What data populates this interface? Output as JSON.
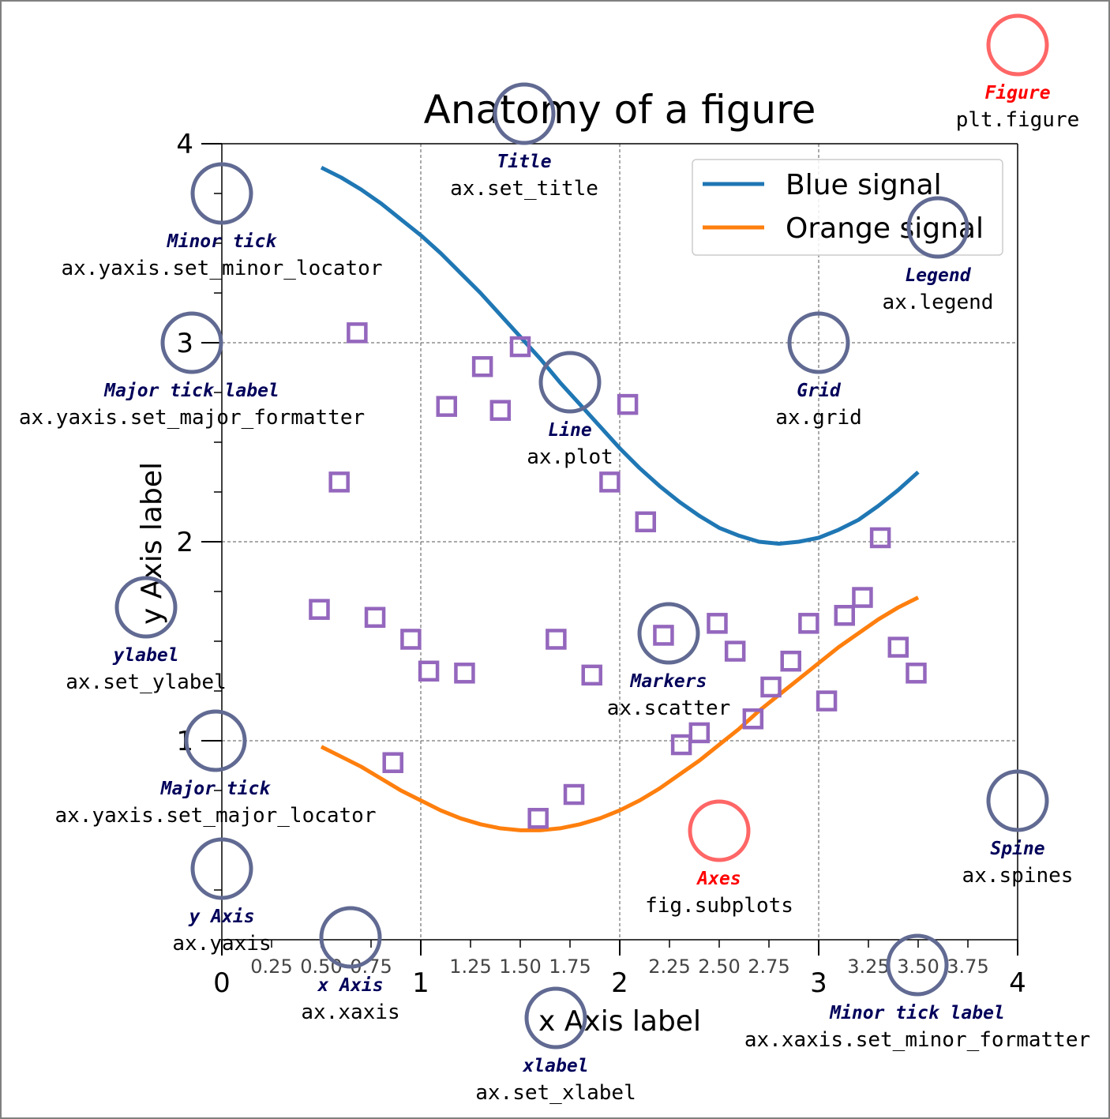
{
  "chart_data": {
    "type": "line",
    "title": "Anatomy of a figure",
    "xlabel": "x Axis label",
    "ylabel": "y Axis label",
    "xlim": [
      0,
      4
    ],
    "ylim": [
      0,
      4
    ],
    "grid": true,
    "legend_position": "upper right",
    "major_ticks_x": [
      "0",
      "1",
      "2",
      "3",
      "4"
    ],
    "major_ticks_y": [
      "1",
      "2",
      "3",
      "4"
    ],
    "minor_ticks_x": [
      "0.25",
      "0.50",
      "0.75",
      "1.25",
      "1.50",
      "1.75",
      "2.25",
      "2.50",
      "2.75",
      "3.25",
      "3.50",
      "3.75"
    ],
    "series": [
      {
        "name": "Blue signal",
        "type": "line",
        "color": "#1f77b4",
        "x": [
          0.5,
          0.6,
          0.7,
          0.8,
          0.9,
          1.0,
          1.1,
          1.2,
          1.3,
          1.4,
          1.5,
          1.6,
          1.7,
          1.8,
          1.9,
          2.0,
          2.1,
          2.2,
          2.3,
          2.4,
          2.5,
          2.6,
          2.7,
          2.8,
          2.9,
          3.0,
          3.1,
          3.2,
          3.3,
          3.4,
          3.5
        ],
        "y": [
          3.88,
          3.83,
          3.77,
          3.7,
          3.62,
          3.54,
          3.45,
          3.35,
          3.25,
          3.14,
          3.03,
          2.92,
          2.8,
          2.69,
          2.58,
          2.47,
          2.37,
          2.28,
          2.2,
          2.13,
          2.07,
          2.03,
          2.0,
          1.99,
          2.0,
          2.02,
          2.06,
          2.11,
          2.18,
          2.26,
          2.35
        ]
      },
      {
        "name": "Orange signal",
        "type": "line",
        "color": "#ff7f0e",
        "x": [
          0.5,
          0.6,
          0.7,
          0.8,
          0.9,
          1.0,
          1.1,
          1.2,
          1.3,
          1.4,
          1.5,
          1.6,
          1.7,
          1.8,
          1.9,
          2.0,
          2.1,
          2.2,
          2.3,
          2.4,
          2.5,
          2.6,
          2.7,
          2.8,
          2.9,
          3.0,
          3.1,
          3.2,
          3.3,
          3.4,
          3.5
        ],
        "y": [
          0.97,
          0.92,
          0.87,
          0.81,
          0.75,
          0.7,
          0.65,
          0.61,
          0.58,
          0.56,
          0.55,
          0.55,
          0.56,
          0.58,
          0.61,
          0.65,
          0.7,
          0.76,
          0.83,
          0.9,
          0.98,
          1.06,
          1.15,
          1.23,
          1.31,
          1.39,
          1.47,
          1.54,
          1.61,
          1.67,
          1.72
        ]
      },
      {
        "name": "Markers",
        "type": "scatter",
        "color": "#9467bd",
        "x": [
          0.49,
          0.59,
          0.68,
          0.77,
          0.86,
          0.95,
          1.04,
          1.13,
          1.22,
          1.31,
          1.4,
          1.5,
          1.59,
          1.68,
          1.77,
          1.86,
          1.95,
          2.04,
          2.13,
          2.22,
          2.31,
          2.4,
          2.49,
          2.58,
          2.67,
          2.76,
          2.86,
          2.95,
          3.04,
          3.13,
          3.22,
          3.31,
          3.4,
          3.49
        ],
        "y": [
          1.66,
          2.3,
          3.05,
          1.62,
          0.89,
          1.51,
          1.35,
          2.68,
          1.34,
          2.88,
          2.66,
          2.98,
          0.61,
          1.51,
          0.73,
          1.33,
          2.3,
          2.69,
          2.1,
          1.53,
          0.98,
          1.04,
          1.59,
          1.45,
          1.11,
          1.27,
          1.4,
          1.59,
          1.2,
          1.63,
          1.72,
          2.02,
          1.47,
          1.34
        ]
      }
    ],
    "annotations": [
      {
        "id": "figure",
        "title": "Figure",
        "code": "plt.figure",
        "title_color": "#ff0000"
      },
      {
        "id": "title",
        "title": "Title",
        "code": "ax.set_title",
        "title_color": "#00005a"
      },
      {
        "id": "minor-tick",
        "title": "Minor tick",
        "code": "ax.yaxis.set_minor_locator",
        "title_color": "#00005a"
      },
      {
        "id": "legend",
        "title": "Legend",
        "code": "ax.legend",
        "title_color": "#00005a"
      },
      {
        "id": "major-tick-label",
        "title": "Major tick label",
        "code": "ax.yaxis.set_major_formatter",
        "title_color": "#00005a"
      },
      {
        "id": "grid",
        "title": "Grid",
        "code": "ax.grid",
        "title_color": "#00005a"
      },
      {
        "id": "line",
        "title": "Line",
        "code": "ax.plot",
        "title_color": "#00005a"
      },
      {
        "id": "ylabel",
        "title": "ylabel",
        "code": "ax.set_ylabel",
        "title_color": "#00005a"
      },
      {
        "id": "markers",
        "title": "Markers",
        "code": "ax.scatter",
        "title_color": "#00005a"
      },
      {
        "id": "major-tick",
        "title": "Major tick",
        "code": "ax.yaxis.set_major_locator",
        "title_color": "#00005a"
      },
      {
        "id": "spine",
        "title": "Spine",
        "code": "ax.spines",
        "title_color": "#00005a"
      },
      {
        "id": "axes",
        "title": "Axes",
        "code": "fig.subplots",
        "title_color": "#ff0000"
      },
      {
        "id": "y-axis",
        "title": "y Axis",
        "code": "ax.yaxis",
        "title_color": "#00005a"
      },
      {
        "id": "x-axis",
        "title": "x Axis",
        "code": "ax.xaxis",
        "title_color": "#00005a"
      },
      {
        "id": "minor-tick-label",
        "title": "Minor tick label",
        "code": "ax.xaxis.set_minor_formatter",
        "title_color": "#00005a"
      },
      {
        "id": "xlabel",
        "title": "xlabel",
        "code": "ax.set_xlabel",
        "title_color": "#00005a"
      }
    ]
  }
}
